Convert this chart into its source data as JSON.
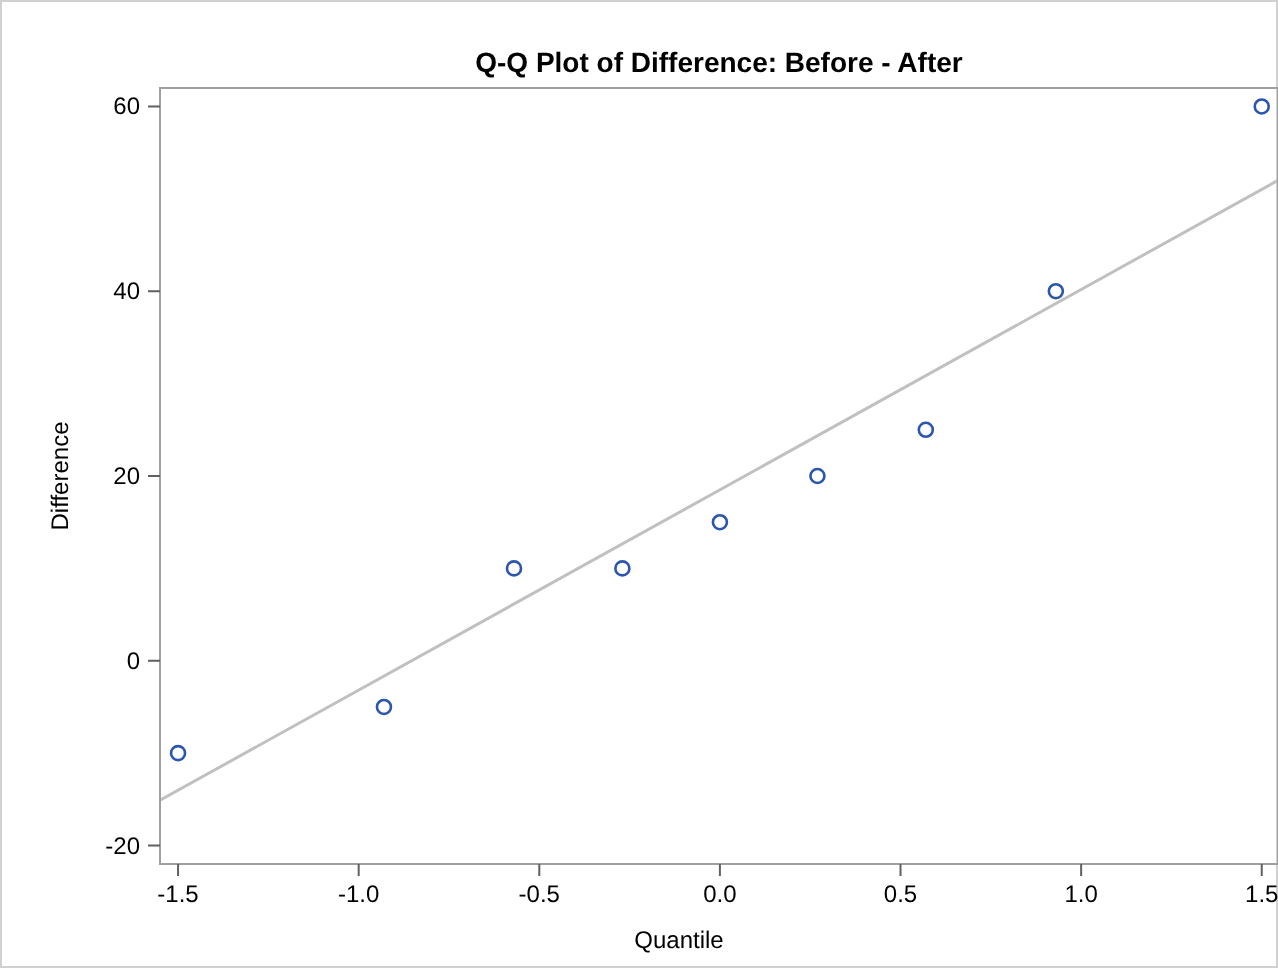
{
  "chart_data": {
    "type": "scatter",
    "title": "Q-Q Plot of Difference: Before - After",
    "xlabel": "Quantile",
    "ylabel": "Difference",
    "xlim": [
      -1.55,
      1.545
    ],
    "ylim": [
      -22,
      62
    ],
    "xticks": [
      {
        "value": -1.5,
        "label": "-1.5"
      },
      {
        "value": -1,
        "label": "-1.0"
      },
      {
        "value": -0.5,
        "label": "-0.5"
      },
      {
        "value": 0,
        "label": "0.0"
      },
      {
        "value": 0.5,
        "label": "0.5"
      },
      {
        "value": 1,
        "label": "1.0"
      },
      {
        "value": 1.5,
        "label": "1.5"
      }
    ],
    "yticks": [
      -20,
      0,
      20,
      40,
      60
    ],
    "grid": false,
    "marker": "circle",
    "series": [
      {
        "color": "#2a55b0",
        "x": [
          -1.5,
          -0.93,
          -0.57,
          -0.27,
          0,
          0.27,
          0.57,
          0.93,
          1.5
        ],
        "values": [
          -10,
          -5,
          10,
          10,
          15,
          20,
          25,
          40,
          60
        ]
      },
      {
        "type": "line",
        "color": "#c0c0c0",
        "marker": "none",
        "x": [
          -1.55,
          1.545
        ],
        "values": [
          -15.1,
          52
        ]
      }
    ]
  }
}
